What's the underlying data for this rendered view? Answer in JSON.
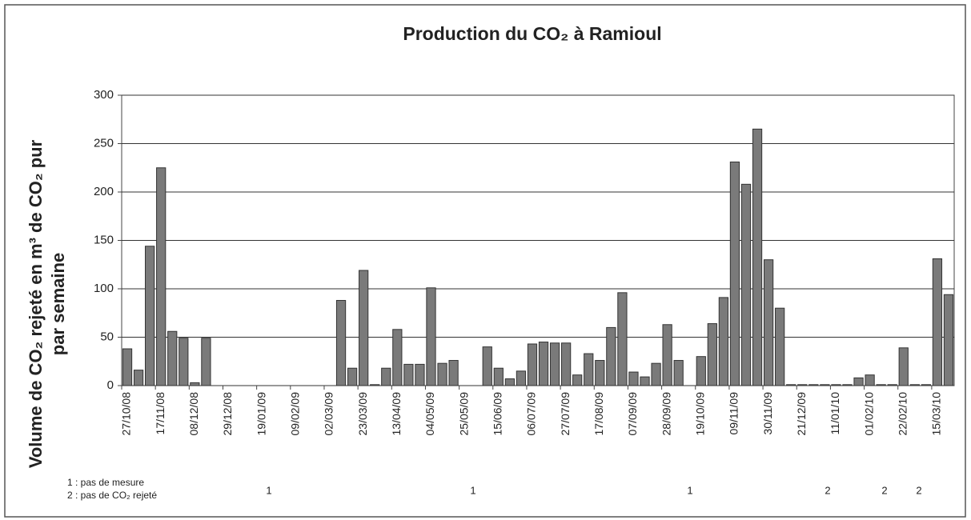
{
  "chart_data": {
    "type": "bar",
    "title": "Production du CO₂ à Ramioul",
    "y_label": [
      "Volume de CO₂ rejeté en m³ de CO₂ pur",
      "par semaine"
    ],
    "categories": [
      "27/10/08",
      null,
      null,
      "17/11/08",
      null,
      null,
      "08/12/08",
      null,
      null,
      "29/12/08",
      null,
      null,
      "19/01/09",
      null,
      null,
      "09/02/09",
      null,
      null,
      "02/03/09",
      null,
      null,
      "23/03/09",
      null,
      null,
      "13/04/09",
      null,
      null,
      "04/05/09",
      null,
      null,
      "25/05/09",
      null,
      null,
      "15/06/09",
      null,
      null,
      "06/07/09",
      null,
      null,
      "27/07/09",
      null,
      null,
      "17/08/09",
      null,
      null,
      "07/09/09",
      null,
      null,
      "28/09/09",
      null,
      null,
      "19/10/09",
      null,
      null,
      "09/11/09",
      null,
      null,
      "30/11/09",
      null,
      null,
      "21/12/09",
      null,
      null,
      "11/01/10",
      null,
      null,
      "01/02/10",
      null,
      null,
      "22/02/10",
      null,
      null,
      "15/03/10",
      null
    ],
    "values": [
      38,
      16,
      144,
      225,
      56,
      49,
      3,
      49,
      0,
      0,
      0,
      0,
      0,
      0,
      0,
      0,
      0,
      0,
      0,
      88,
      18,
      119,
      1,
      18,
      58,
      22,
      22,
      101,
      23,
      26,
      0,
      0,
      40,
      18,
      7,
      15,
      43,
      45,
      44,
      44,
      11,
      33,
      26,
      60,
      96,
      14,
      9,
      23,
      63,
      26,
      0,
      30,
      64,
      91,
      231,
      208,
      265,
      130,
      80,
      1,
      1,
      1,
      1,
      1,
      1,
      8,
      11,
      1,
      1,
      39,
      1,
      1,
      131,
      94
    ],
    "color": "#7a7a7a",
    "ylim": [
      0,
      300
    ],
    "yticks": [
      0,
      50,
      100,
      150,
      200,
      250,
      300
    ],
    "grid": true,
    "legend_notes": [
      "1  :  pas de mesure",
      "2  :  pas de CO₂ rejeté"
    ],
    "annotations": [
      "1",
      "1",
      "1",
      "2",
      "2",
      "2"
    ]
  }
}
